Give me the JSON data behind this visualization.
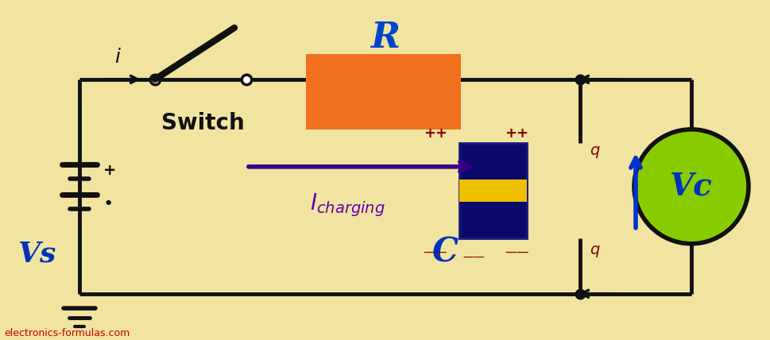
{
  "bg_color": "#f0e4a0",
  "circuit_color": "#111111",
  "wire_lw": 3.5,
  "resistor_color": "#f07020",
  "vc_color": "#88cc00",
  "arrow_color": "#330088",
  "vc_arrow_color": "#0033cc",
  "watermark": "electronics-formulas.com",
  "label_R": "R",
  "label_C": "C",
  "label_Vs": "Vs",
  "label_Vc": "Vc",
  "label_i": "i",
  "label_switch": "Switch",
  "cap_body_color": "#0a1060",
  "cap_stripe_color": "#f0c000",
  "R_label_color": "#0044cc",
  "C_label_color": "#0033bb",
  "Vs_label_color": "#0033bb",
  "Vc_label_color": "#0033bb",
  "switch_label_color": "#111111",
  "i_label_color": "#111111",
  "I_label_color": "#6600aa",
  "q_label_color": "#880000",
  "plus_label_color": "#880000",
  "minus_label_color": "#880000"
}
